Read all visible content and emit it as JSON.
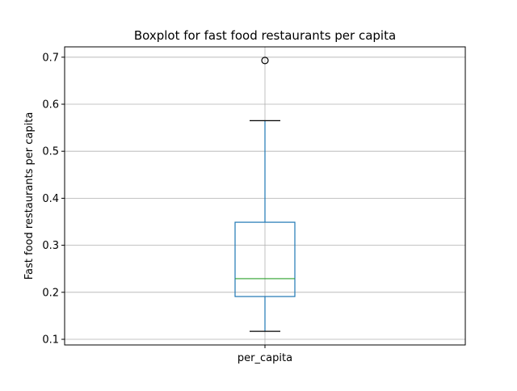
{
  "chart_data": {
    "type": "box",
    "title": "Boxplot for fast food restaurants per capita",
    "xlabel": "",
    "ylabel": "Fast food restaurants per capita",
    "categories": [
      "per_capita"
    ],
    "ylim": [
      0.088,
      0.722
    ],
    "yticks": [
      0.1,
      0.2,
      0.3,
      0.4,
      0.5,
      0.6,
      0.7
    ],
    "ytick_labels": [
      "0.1",
      "0.2",
      "0.3",
      "0.4",
      "0.5",
      "0.6",
      "0.7"
    ],
    "grid": true,
    "boxes": [
      {
        "category": "per_capita",
        "whisker_low": 0.117,
        "q1": 0.191,
        "median": 0.229,
        "q3": 0.349,
        "whisker_high": 0.565,
        "outliers": [
          0.693
        ]
      }
    ],
    "colors": {
      "box": "#1f77b4",
      "median": "#2ca02c",
      "whisker_cap": "#000000",
      "outlier": "#000000",
      "grid": "#b0b0b0"
    }
  }
}
